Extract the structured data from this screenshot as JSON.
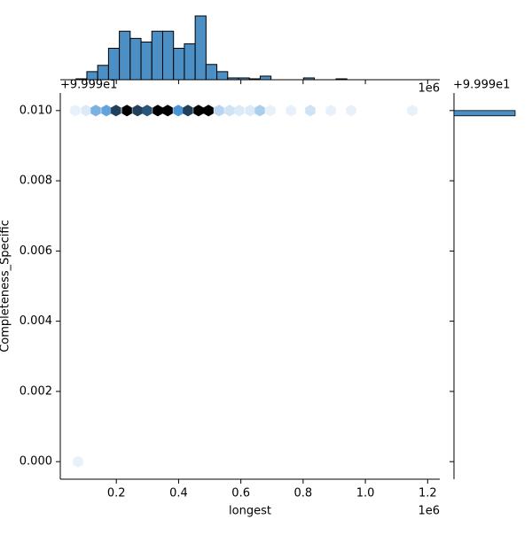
{
  "chart_data": {
    "type": "hexbin",
    "xlabel": "longest",
    "ylabel": "Completeness_Specific",
    "x_offset_label": "1e6",
    "y_offset_label": "+9.999e1",
    "right_offset_label": "+9.999e1",
    "xlim": [
      0.02,
      1.239
    ],
    "ylim": [
      -0.0005,
      0.0105
    ],
    "xticks": [
      0.2,
      0.4,
      0.6,
      0.8,
      {
        "value": 1.0,
        "label": "1.0"
      },
      1.2
    ],
    "yticks": [
      {
        "value": 0.0,
        "label": "0.000"
      },
      {
        "value": 0.002,
        "label": "0.002"
      },
      {
        "value": 0.004,
        "label": "0.004"
      },
      {
        "value": 0.006,
        "label": "0.006"
      },
      {
        "value": 0.008,
        "label": "0.008"
      },
      {
        "value": 0.01,
        "label": "0.010"
      }
    ],
    "cmap": [
      "#f4f8fc",
      "#4a95d6",
      "#000000"
    ],
    "hexes": {
      "x": [
        0.068,
        0.103,
        0.134,
        0.168,
        0.199,
        0.234,
        0.268,
        0.299,
        0.333,
        0.365,
        0.399,
        0.43,
        0.464,
        0.496,
        0.53,
        0.564,
        0.595,
        0.63,
        0.661,
        0.695,
        0.761,
        0.823,
        0.889,
        0.954,
        1.151,
        0.077
      ],
      "y": [
        0.01,
        0.01,
        0.01,
        0.01,
        0.01,
        0.01,
        0.01,
        0.01,
        0.01,
        0.01,
        0.01,
        0.01,
        0.01,
        0.01,
        0.01,
        0.01,
        0.01,
        0.01,
        0.01,
        0.01,
        0.01,
        0.01,
        0.01,
        0.01,
        0.01,
        0.0
      ],
      "counts": [
        1,
        2,
        10,
        12,
        22,
        28,
        22,
        20,
        28,
        28,
        14,
        22,
        28,
        28,
        5,
        3,
        2,
        2,
        6,
        1,
        1,
        3,
        1,
        1,
        1,
        1
      ]
    },
    "top_hist": {
      "color": "#4b8fc4",
      "bins": [
        0.0705,
        0.1053,
        0.1401,
        0.1749,
        0.2097,
        0.2445,
        0.2793,
        0.3141,
        0.3489,
        0.3837,
        0.4185,
        0.4533,
        0.4881,
        0.5229,
        0.5577,
        0.5925,
        0.6273,
        0.6621,
        0.6969,
        0.7317,
        0.7665,
        0.8013,
        0.8361,
        0.8709,
        0.9057,
        0.9405,
        0.9753,
        1.0101,
        1.0449,
        1.0797,
        1.1145,
        1.1493,
        1.1841,
        1.2189
      ],
      "counts": [
        1,
        9,
        16,
        35,
        54,
        46,
        42,
        54,
        54,
        35,
        40,
        71,
        17,
        9,
        2,
        2,
        1,
        4,
        0,
        0,
        0,
        2,
        0,
        0,
        1,
        0,
        0,
        0,
        0,
        0,
        0,
        0,
        0
      ]
    },
    "right_hist": {
      "color": "#4b8fc4",
      "bins": [
        0.00985,
        0.01
      ],
      "counts": [
        495
      ]
    }
  }
}
